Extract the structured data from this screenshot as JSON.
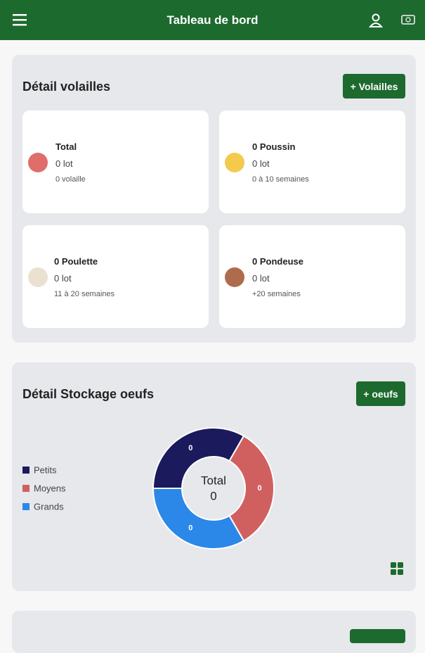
{
  "header": {
    "title": "Tableau de bord"
  },
  "poultry": {
    "title": "Détail volailles",
    "button": "+ Volailles",
    "cards": [
      {
        "title": "Total",
        "lots": "0 lot",
        "detail": "0 volaille"
      },
      {
        "title": "0 Poussin",
        "lots": "0 lot",
        "detail": "0 à 10 semaines"
      },
      {
        "title": "0 Poulette",
        "lots": "0 lot",
        "detail": "11 à 20 semaines"
      },
      {
        "title": "0 Pondeuse",
        "lots": "0 lot",
        "detail": "+20 semaines"
      }
    ]
  },
  "eggs": {
    "title": "Détail Stockage oeufs",
    "button": "+ oeufs"
  },
  "chart_data": {
    "type": "donut",
    "categories": [
      "Petits",
      "Moyens",
      "Grands"
    ],
    "values": [
      0,
      0,
      0
    ],
    "colors": [
      "#1b1a5c",
      "#d0605f",
      "#2b88e8"
    ],
    "center_label": "Total",
    "total": 0,
    "legend": "left"
  }
}
